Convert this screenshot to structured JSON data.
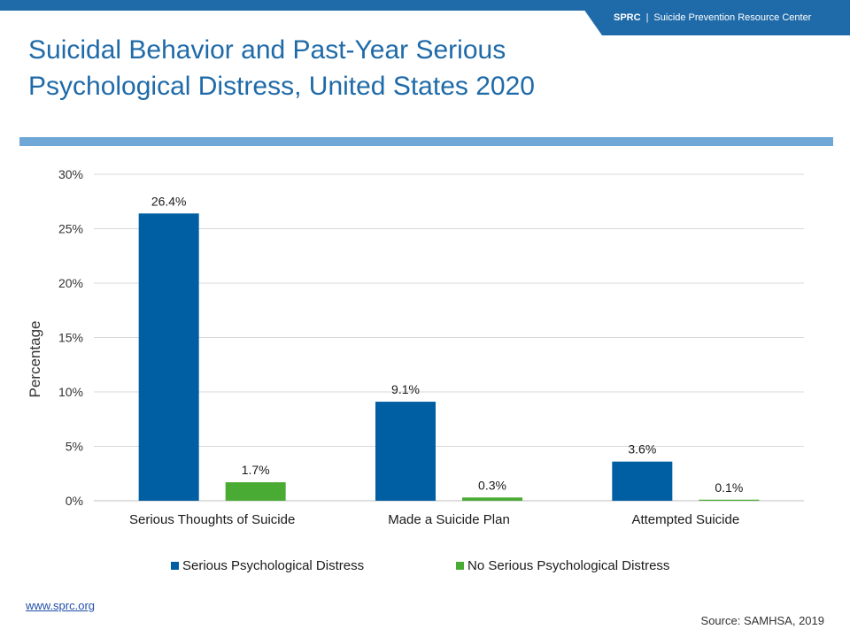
{
  "header": {
    "org_short": "SPRC",
    "separator": "|",
    "org_name": "Suicide Prevention Resource Center"
  },
  "colors": {
    "brand": "#1f6aa8",
    "rule": "#6fa8d6",
    "series_1": "#005fa3",
    "series_2": "#4aab34"
  },
  "chart_data": {
    "type": "bar",
    "title": "Suicidal Behavior and Past-Year Serious Psychological Distress, United States 2020",
    "xlabel": "",
    "ylabel": "Percentage",
    "categories": [
      "Serious Thoughts of Suicide",
      "Made a Suicide Plan",
      "Attempted Suicide"
    ],
    "series": [
      {
        "name": "Serious Psychological Distress",
        "values": [
          26.4,
          9.1,
          3.6
        ],
        "labels": [
          "26.4%",
          "9.1%",
          "3.6%"
        ],
        "color": "#005fa3"
      },
      {
        "name": "No Serious Psychological Distress",
        "values": [
          1.7,
          0.3,
          0.1
        ],
        "labels": [
          "1.7%",
          "0.3%",
          "0.1%"
        ],
        "color": "#4aab34"
      }
    ],
    "ylim": [
      0,
      30
    ],
    "yticks": [
      0,
      5,
      10,
      15,
      20,
      25,
      30
    ],
    "ytick_labels": [
      "0%",
      "5%",
      "10%",
      "15%",
      "20%",
      "25%",
      "30%"
    ],
    "grid": true,
    "legend": "bottom"
  },
  "footer": {
    "url": "www.sprc.org",
    "source": "Source: SAMHSA, 2019"
  }
}
